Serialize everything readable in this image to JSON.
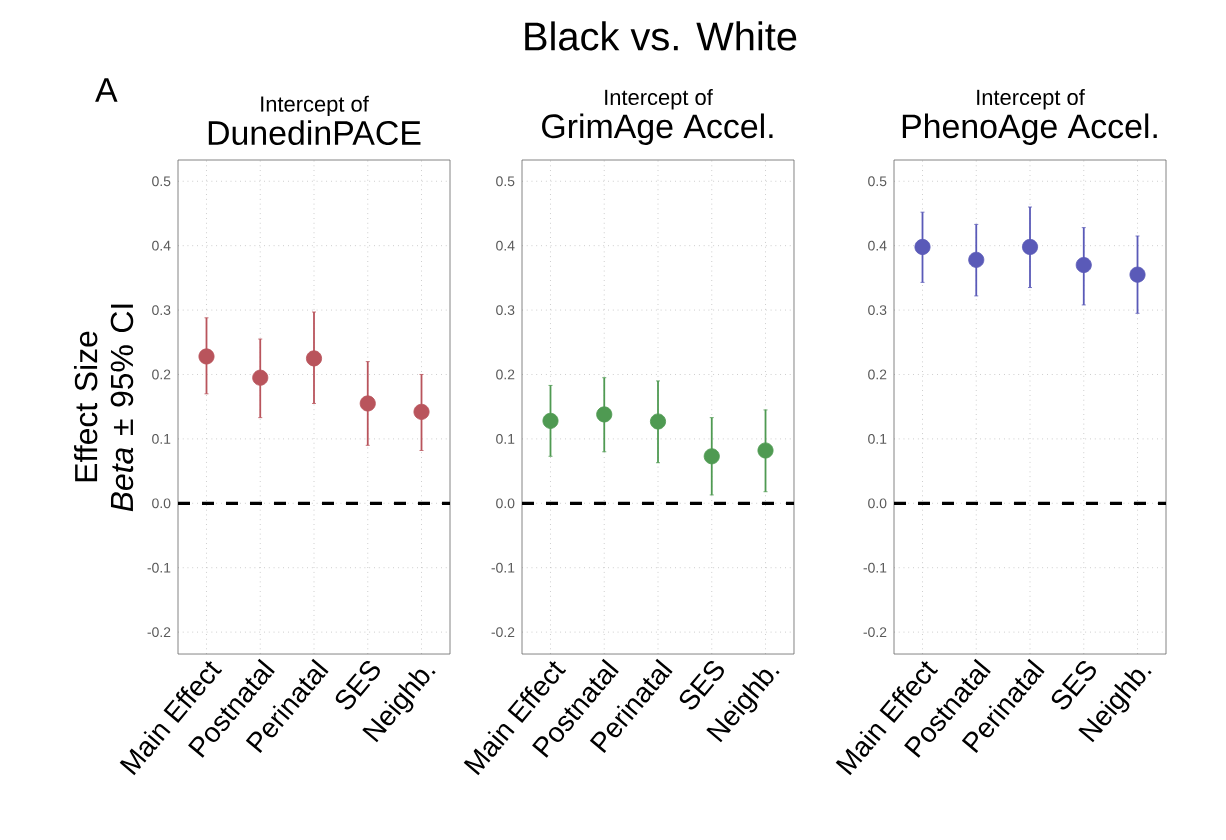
{
  "chart_data": [
    {
      "type": "scatter",
      "title": "Intercept of",
      "subtitle": "DunedinPACE",
      "ylabel": "Effect Size *Beta* ± 95% CI",
      "annotations": [
        "A",
        "Black vs. White"
      ],
      "categories": [
        "Main Effect",
        "Postnatal",
        "Perinatal",
        "SES",
        "Neighb."
      ],
      "series": [
        {
          "color": "#b9545c",
          "values": [
            0.228,
            0.195,
            0.225,
            0.155,
            0.142
          ],
          "errors": [
            [
              0.17,
              0.288
            ],
            [
              0.133,
              0.255
            ],
            [
              0.155,
              0.297
            ],
            [
              0.09,
              0.22
            ],
            [
              0.082,
              0.2
            ]
          ]
        }
      ],
      "ylim": [
        -0.234,
        0.533
      ],
      "yticks": [
        {
          "value": -0.2,
          "label": "-0.2"
        },
        {
          "value": -0.1,
          "label": "-0.1"
        },
        {
          "value": 0,
          "label": "0.0"
        },
        {
          "value": 0.1,
          "label": "0.1"
        },
        {
          "value": 0.2,
          "label": "0.2"
        },
        {
          "value": 0.3,
          "label": "0.3"
        },
        {
          "value": 0.4,
          "label": "0.4"
        },
        {
          "value": 0.5,
          "label": "0.5"
        }
      ],
      "grid": true,
      "marker": "circle",
      "ref_lines": [
        {
          "axis": "y",
          "value": 0,
          "line_style": "dashed",
          "color": "#000000"
        }
      ]
    },
    {
      "type": "scatter",
      "title": "Intercept of",
      "subtitle": "GrimAge Accel.",
      "categories": [
        "Main Effect",
        "Postnatal",
        "Perinatal",
        "SES",
        "Neighb."
      ],
      "series": [
        {
          "color": "#4f9a52",
          "values": [
            0.128,
            0.138,
            0.127,
            0.073,
            0.082
          ],
          "errors": [
            [
              0.073,
              0.183
            ],
            [
              0.08,
              0.195
            ],
            [
              0.063,
              0.19
            ],
            [
              0.013,
              0.133
            ],
            [
              0.018,
              0.145
            ]
          ]
        }
      ],
      "ylim": [
        -0.234,
        0.533
      ],
      "yticks": [
        {
          "value": -0.2,
          "label": "-0.2"
        },
        {
          "value": -0.1,
          "label": "-0.1"
        },
        {
          "value": 0,
          "label": "0.0"
        },
        {
          "value": 0.1,
          "label": "0.1"
        },
        {
          "value": 0.2,
          "label": "0.2"
        },
        {
          "value": 0.3,
          "label": "0.3"
        },
        {
          "value": 0.4,
          "label": "0.4"
        },
        {
          "value": 0.5,
          "label": "0.5"
        }
      ],
      "grid": true,
      "marker": "circle",
      "ref_lines": [
        {
          "axis": "y",
          "value": 0,
          "line_style": "dashed",
          "color": "#000000"
        }
      ]
    },
    {
      "type": "scatter",
      "title": "Intercept of",
      "subtitle": "PhenoAge Accel.",
      "categories": [
        "Main Effect",
        "Postnatal",
        "Perinatal",
        "SES",
        "Neighb."
      ],
      "series": [
        {
          "color": "#5a5ab8",
          "values": [
            0.398,
            0.378,
            0.398,
            0.37,
            0.355
          ],
          "errors": [
            [
              0.343,
              0.452
            ],
            [
              0.322,
              0.433
            ],
            [
              0.335,
              0.46
            ],
            [
              0.308,
              0.428
            ],
            [
              0.295,
              0.415
            ]
          ]
        }
      ],
      "ylim": [
        -0.234,
        0.533
      ],
      "yticks": [
        {
          "value": -0.2,
          "label": "-0.2"
        },
        {
          "value": -0.1,
          "label": "-0.1"
        },
        {
          "value": 0,
          "label": "0.0"
        },
        {
          "value": 0.1,
          "label": "0.1"
        },
        {
          "value": 0.2,
          "label": "0.2"
        },
        {
          "value": 0.3,
          "label": "0.3"
        },
        {
          "value": 0.4,
          "label": "0.4"
        },
        {
          "value": 0.5,
          "label": "0.5"
        }
      ],
      "grid": true,
      "marker": "circle",
      "ref_lines": [
        {
          "axis": "y",
          "value": 0,
          "line_style": "dashed",
          "color": "#000000"
        }
      ]
    }
  ]
}
